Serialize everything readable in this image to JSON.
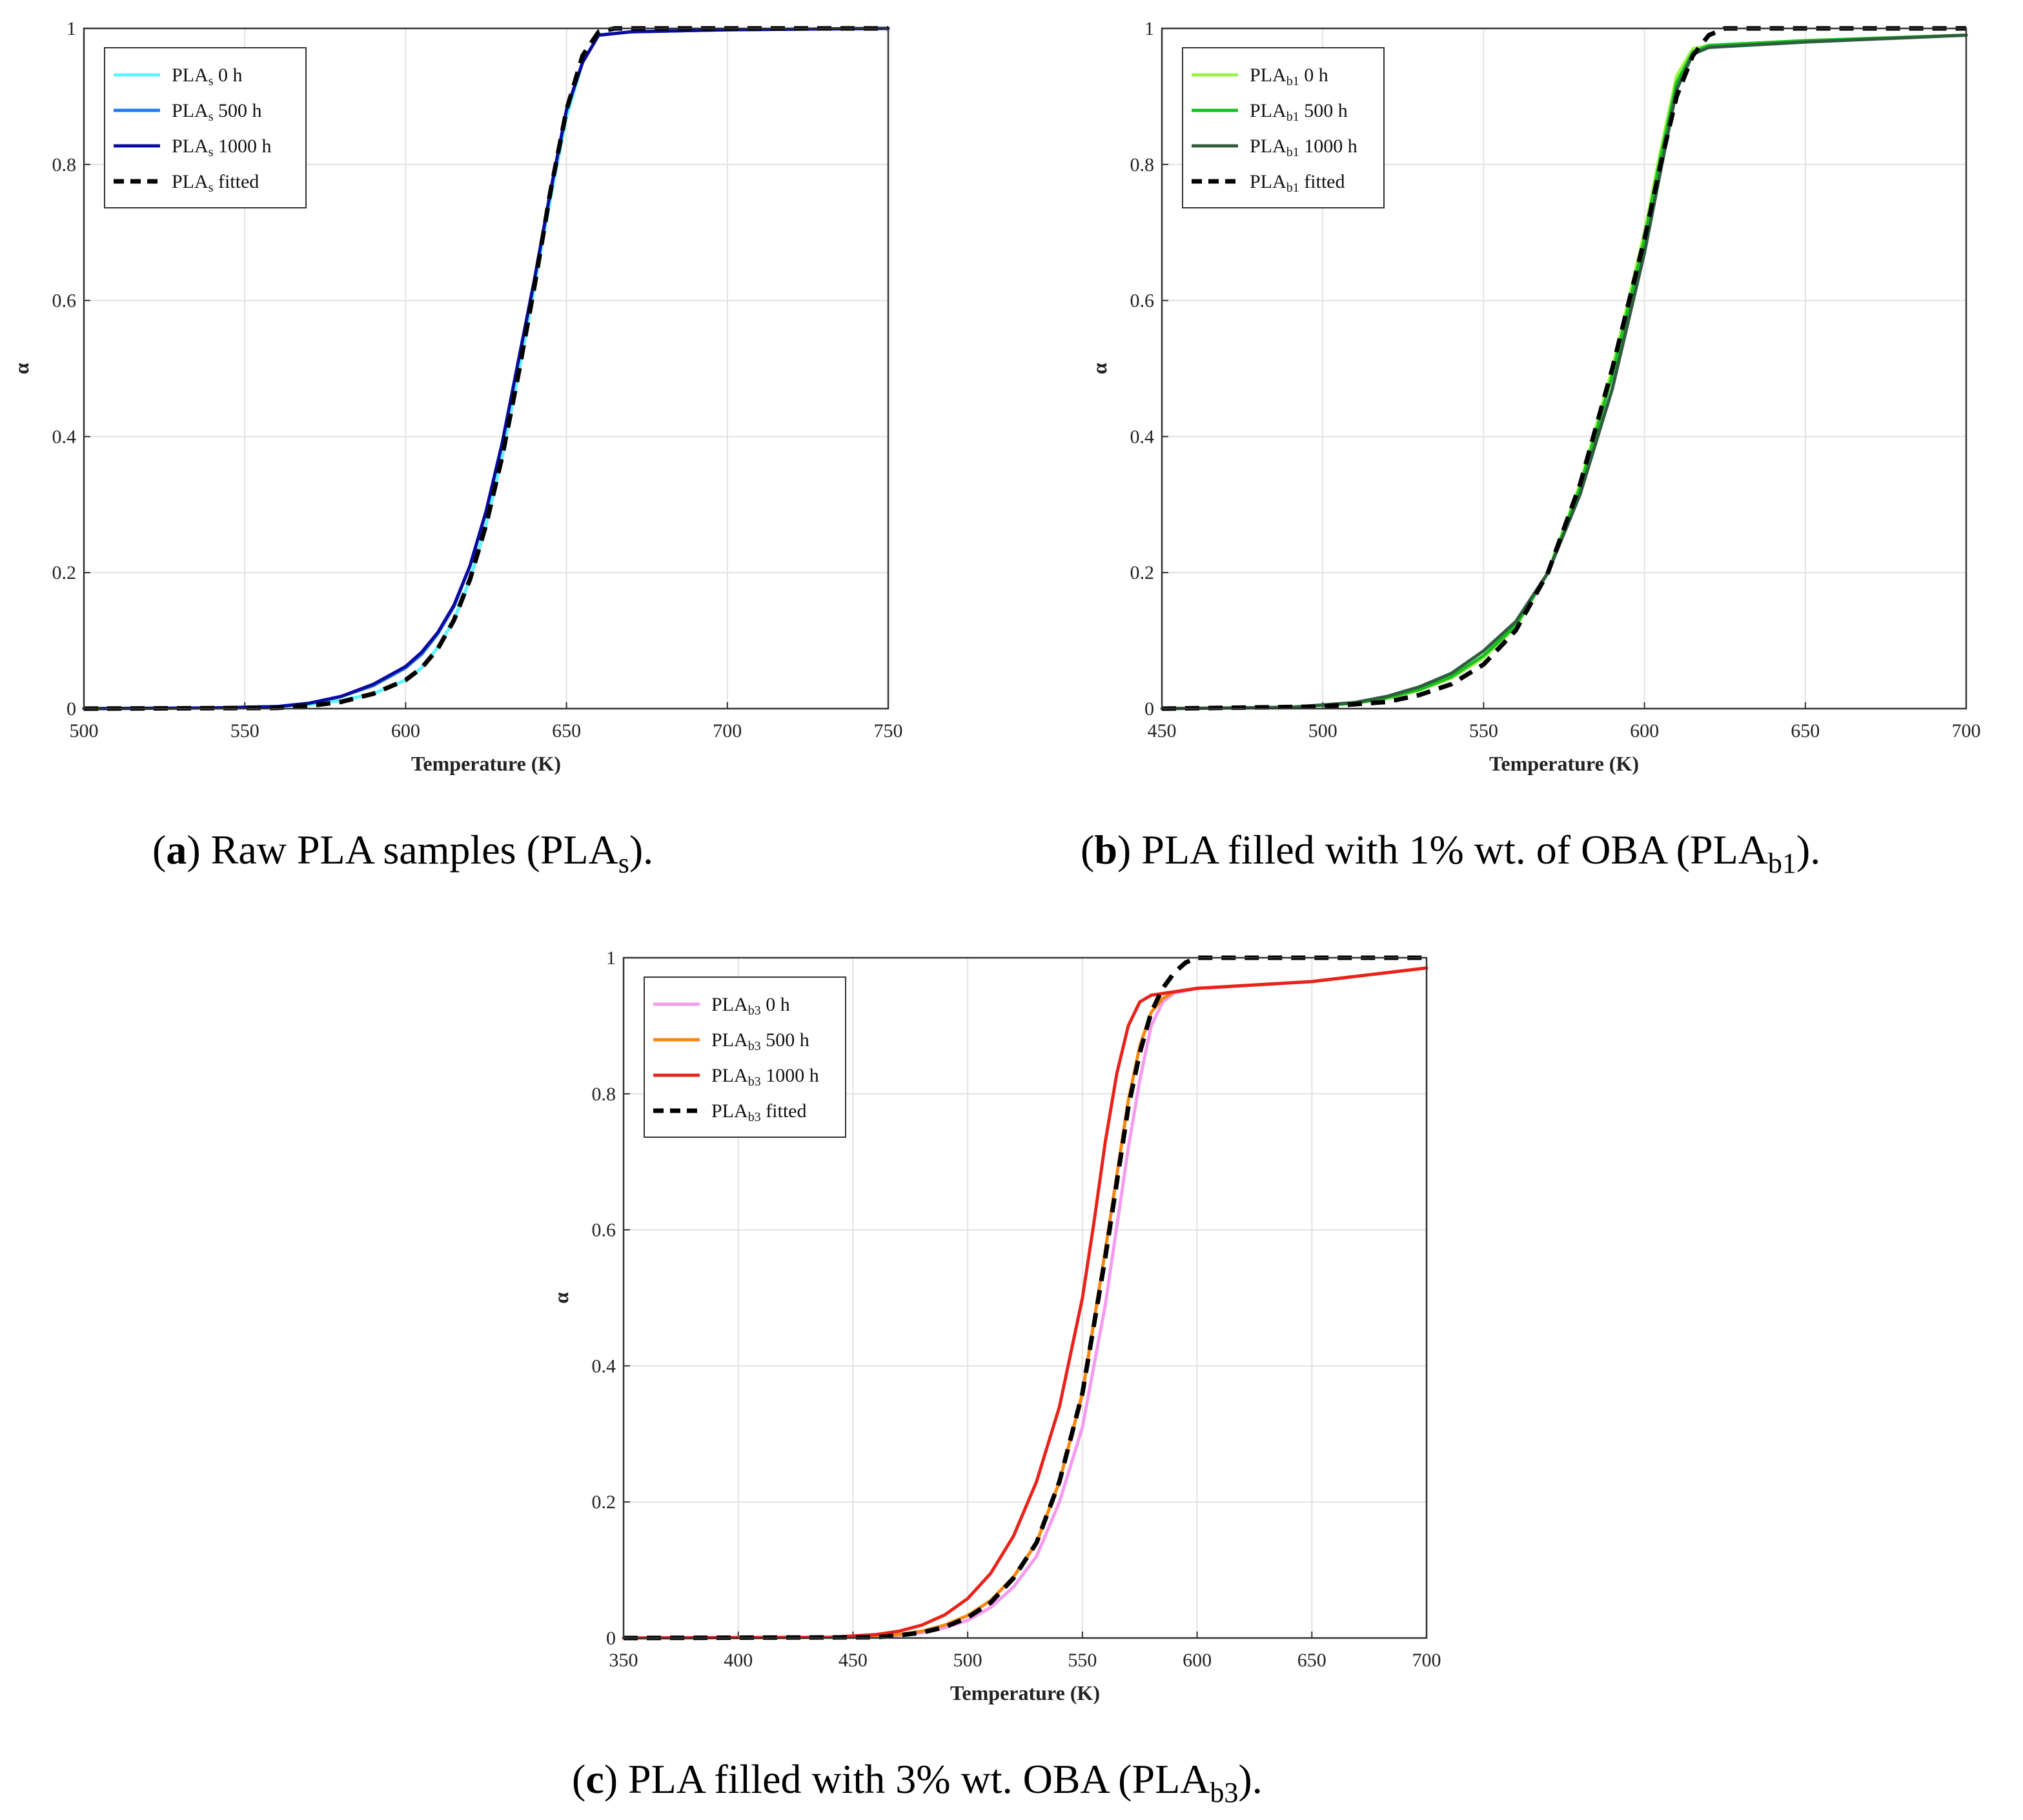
{
  "chart_data": [
    {
      "type": "line",
      "panel": "a",
      "xlabel": "Temperature (K)",
      "ylabel": "α",
      "xlim": [
        500,
        750
      ],
      "ylim": [
        0,
        1
      ],
      "xticks": [
        "500",
        "550",
        "600",
        "650",
        "700",
        "750"
      ],
      "yticks": [
        "0",
        "0.2",
        "0.4",
        "0.6",
        "0.8",
        "1"
      ],
      "grid": true,
      "legend_position": "top-left",
      "caption": {
        "pre": "(",
        "letter": "a",
        "text": ") Raw PLA samples (PLA",
        "sub": "s",
        "post": ")."
      },
      "series": [
        {
          "name": "PLAs 0 h",
          "label_base": "PLA",
          "label_sub": "s",
          "label_rest": " 0 h",
          "color": "#5ff2ff",
          "dash": false,
          "x": [
            500,
            540,
            560,
            570,
            580,
            590,
            600,
            605,
            610,
            615,
            620,
            625,
            630,
            635,
            640,
            645,
            650,
            655,
            660,
            670,
            700,
            750
          ],
          "y": [
            0,
            0.001,
            0.003,
            0.006,
            0.012,
            0.022,
            0.042,
            0.06,
            0.09,
            0.13,
            0.19,
            0.27,
            0.37,
            0.49,
            0.62,
            0.75,
            0.87,
            0.95,
            0.99,
            0.995,
            0.998,
            1.0
          ]
        },
        {
          "name": "PLAs 500 h",
          "label_base": "PLA",
          "label_sub": "s",
          "label_rest": " 500 h",
          "color": "#1e7cf0",
          "dash": false,
          "x": [
            500,
            540,
            560,
            570,
            580,
            590,
            600,
            605,
            610,
            615,
            620,
            625,
            630,
            635,
            640,
            645,
            650,
            655,
            660,
            670,
            700,
            750
          ],
          "y": [
            0,
            0.001,
            0.003,
            0.008,
            0.018,
            0.034,
            0.06,
            0.08,
            0.11,
            0.15,
            0.21,
            0.29,
            0.39,
            0.51,
            0.63,
            0.76,
            0.88,
            0.95,
            0.99,
            0.995,
            0.998,
            1.0
          ]
        },
        {
          "name": "PLAs 1000 h",
          "label_base": "PLA",
          "label_sub": "s",
          "label_rest": " 1000 h",
          "color": "#0a0a9e",
          "dash": false,
          "x": [
            500,
            540,
            560,
            570,
            580,
            590,
            600,
            605,
            610,
            615,
            620,
            625,
            630,
            635,
            640,
            645,
            650,
            655,
            660,
            670,
            700,
            750
          ],
          "y": [
            0,
            0.001,
            0.003,
            0.008,
            0.018,
            0.036,
            0.062,
            0.083,
            0.112,
            0.152,
            0.21,
            0.29,
            0.39,
            0.51,
            0.63,
            0.76,
            0.88,
            0.95,
            0.99,
            0.995,
            0.998,
            1.0
          ]
        },
        {
          "name": "PLAs fitted",
          "label_base": "PLA",
          "label_sub": "s",
          "label_rest": " fitted",
          "color": "#000000",
          "dash": true,
          "x": [
            500,
            560,
            570,
            580,
            590,
            600,
            605,
            610,
            615,
            620,
            625,
            630,
            635,
            640,
            645,
            650,
            655,
            660,
            665,
            700,
            750
          ],
          "y": [
            0,
            0.001,
            0.004,
            0.01,
            0.022,
            0.042,
            0.06,
            0.088,
            0.13,
            0.19,
            0.27,
            0.37,
            0.49,
            0.62,
            0.76,
            0.88,
            0.96,
            0.995,
            1.0,
            1.0,
            1.0
          ]
        }
      ]
    },
    {
      "type": "line",
      "panel": "b",
      "xlabel": "Temperature (K)",
      "ylabel": "α",
      "xlim": [
        450,
        700
      ],
      "ylim": [
        0,
        1
      ],
      "xticks": [
        "450",
        "500",
        "550",
        "600",
        "650",
        "700"
      ],
      "yticks": [
        "0",
        "0.2",
        "0.4",
        "0.6",
        "0.8",
        "1"
      ],
      "grid": true,
      "legend_position": "top-left",
      "caption": {
        "pre": "(",
        "letter": "b",
        "text": ") PLA filled with 1% wt. of OBA (PLA",
        "sub": "b1",
        "post": ")."
      },
      "series": [
        {
          "name": "PLAb1 0 h",
          "label_base": "PLA",
          "label_sub": "b1",
          "label_rest": " 0 h",
          "color": "#9ef24a",
          "dash": false,
          "x": [
            450,
            490,
            510,
            520,
            530,
            540,
            550,
            560,
            570,
            580,
            590,
            600,
            605,
            610,
            615,
            620,
            650,
            700
          ],
          "y": [
            0,
            0.002,
            0.008,
            0.015,
            0.027,
            0.045,
            0.075,
            0.12,
            0.2,
            0.33,
            0.5,
            0.7,
            0.82,
            0.93,
            0.97,
            0.975,
            0.982,
            0.99
          ]
        },
        {
          "name": "PLAb1 500 h",
          "label_base": "PLA",
          "label_sub": "b1",
          "label_rest": " 500 h",
          "color": "#14c11e",
          "dash": false,
          "x": [
            450,
            490,
            510,
            520,
            530,
            540,
            550,
            560,
            570,
            580,
            590,
            600,
            605,
            610,
            615,
            620,
            650,
            700
          ],
          "y": [
            0,
            0.002,
            0.008,
            0.016,
            0.028,
            0.047,
            0.078,
            0.122,
            0.2,
            0.325,
            0.49,
            0.69,
            0.81,
            0.92,
            0.965,
            0.975,
            0.982,
            0.99
          ]
        },
        {
          "name": "PLAb1 1000 h",
          "label_base": "PLA",
          "label_sub": "b1",
          "label_rest": " 1000 h",
          "color": "#2e5e3e",
          "dash": false,
          "x": [
            450,
            490,
            510,
            520,
            530,
            540,
            550,
            560,
            570,
            580,
            590,
            600,
            605,
            610,
            615,
            620,
            650,
            700
          ],
          "y": [
            0,
            0.002,
            0.009,
            0.018,
            0.032,
            0.052,
            0.085,
            0.128,
            0.2,
            0.315,
            0.47,
            0.67,
            0.79,
            0.91,
            0.962,
            0.972,
            0.98,
            0.99
          ]
        },
        {
          "name": "PLAb1 fitted",
          "label_base": "PLA",
          "label_sub": "b1",
          "label_rest": " fitted",
          "color": "#000000",
          "dash": true,
          "x": [
            450,
            500,
            520,
            530,
            540,
            550,
            560,
            570,
            580,
            590,
            600,
            605,
            610,
            615,
            620,
            625,
            630,
            700
          ],
          "y": [
            0,
            0.003,
            0.01,
            0.02,
            0.036,
            0.065,
            0.115,
            0.2,
            0.33,
            0.5,
            0.69,
            0.8,
            0.9,
            0.96,
            0.99,
            1.0,
            1.0,
            1.0
          ]
        }
      ]
    },
    {
      "type": "line",
      "panel": "c",
      "xlabel": "Temperature (K)",
      "ylabel": "α",
      "xlim": [
        350,
        700
      ],
      "ylim": [
        0,
        1
      ],
      "xticks": [
        "350",
        "400",
        "450",
        "500",
        "550",
        "600",
        "650",
        "700"
      ],
      "yticks": [
        "0",
        "0.2",
        "0.4",
        "0.6",
        "0.8",
        "1"
      ],
      "grid": true,
      "legend_position": "top-left",
      "caption": {
        "pre": "(",
        "letter": "c",
        "text": ") PLA filled with 3% wt. OBA (PLA",
        "sub": "b3",
        "post": ")."
      },
      "series": [
        {
          "name": "PLAb3 0 h",
          "label_base": "PLA",
          "label_sub": "b3",
          "label_rest": " 0 h",
          "color": "#f59aee",
          "dash": false,
          "x": [
            350,
            450,
            470,
            480,
            490,
            500,
            510,
            520,
            530,
            540,
            550,
            560,
            570,
            575,
            580,
            585,
            590,
            600,
            650,
            700
          ],
          "y": [
            0,
            0.001,
            0.004,
            0.008,
            0.015,
            0.026,
            0.045,
            0.075,
            0.12,
            0.2,
            0.31,
            0.49,
            0.72,
            0.82,
            0.9,
            0.935,
            0.948,
            0.955,
            0.965,
            0.985
          ]
        },
        {
          "name": "PLAb3 500 h",
          "label_base": "PLA",
          "label_sub": "b3",
          "label_rest": " 500 h",
          "color": "#f5870f",
          "dash": false,
          "x": [
            350,
            450,
            470,
            480,
            490,
            500,
            510,
            520,
            530,
            540,
            550,
            560,
            570,
            575,
            580,
            585,
            590,
            600,
            650,
            700
          ],
          "y": [
            0,
            0.001,
            0.005,
            0.01,
            0.019,
            0.033,
            0.055,
            0.09,
            0.14,
            0.23,
            0.36,
            0.57,
            0.79,
            0.87,
            0.92,
            0.94,
            0.95,
            0.955,
            0.965,
            0.985
          ]
        },
        {
          "name": "PLAb3 1000 h",
          "label_base": "PLA",
          "label_sub": "b3",
          "label_rest": " 1000 h",
          "color": "#e8231c",
          "dash": false,
          "x": [
            350,
            440,
            460,
            470,
            480,
            490,
            500,
            510,
            520,
            530,
            540,
            550,
            555,
            560,
            565,
            570,
            575,
            580,
            590,
            600,
            650,
            700
          ],
          "y": [
            0,
            0.001,
            0.005,
            0.01,
            0.019,
            0.034,
            0.058,
            0.095,
            0.15,
            0.23,
            0.34,
            0.5,
            0.61,
            0.73,
            0.83,
            0.9,
            0.935,
            0.945,
            0.95,
            0.955,
            0.965,
            0.985
          ]
        },
        {
          "name": "PLAb3 fitted",
          "label_base": "PLA",
          "label_sub": "b3",
          "label_rest": " fitted",
          "color": "#000000",
          "dash": true,
          "x": [
            350,
            460,
            470,
            480,
            490,
            500,
            510,
            520,
            530,
            540,
            550,
            560,
            570,
            575,
            580,
            585,
            590,
            595,
            600,
            610,
            700
          ],
          "y": [
            0,
            0.001,
            0.004,
            0.008,
            0.016,
            0.03,
            0.052,
            0.088,
            0.14,
            0.23,
            0.36,
            0.56,
            0.78,
            0.86,
            0.92,
            0.955,
            0.978,
            0.993,
            1.0,
            1.0,
            1.0
          ]
        }
      ]
    }
  ]
}
